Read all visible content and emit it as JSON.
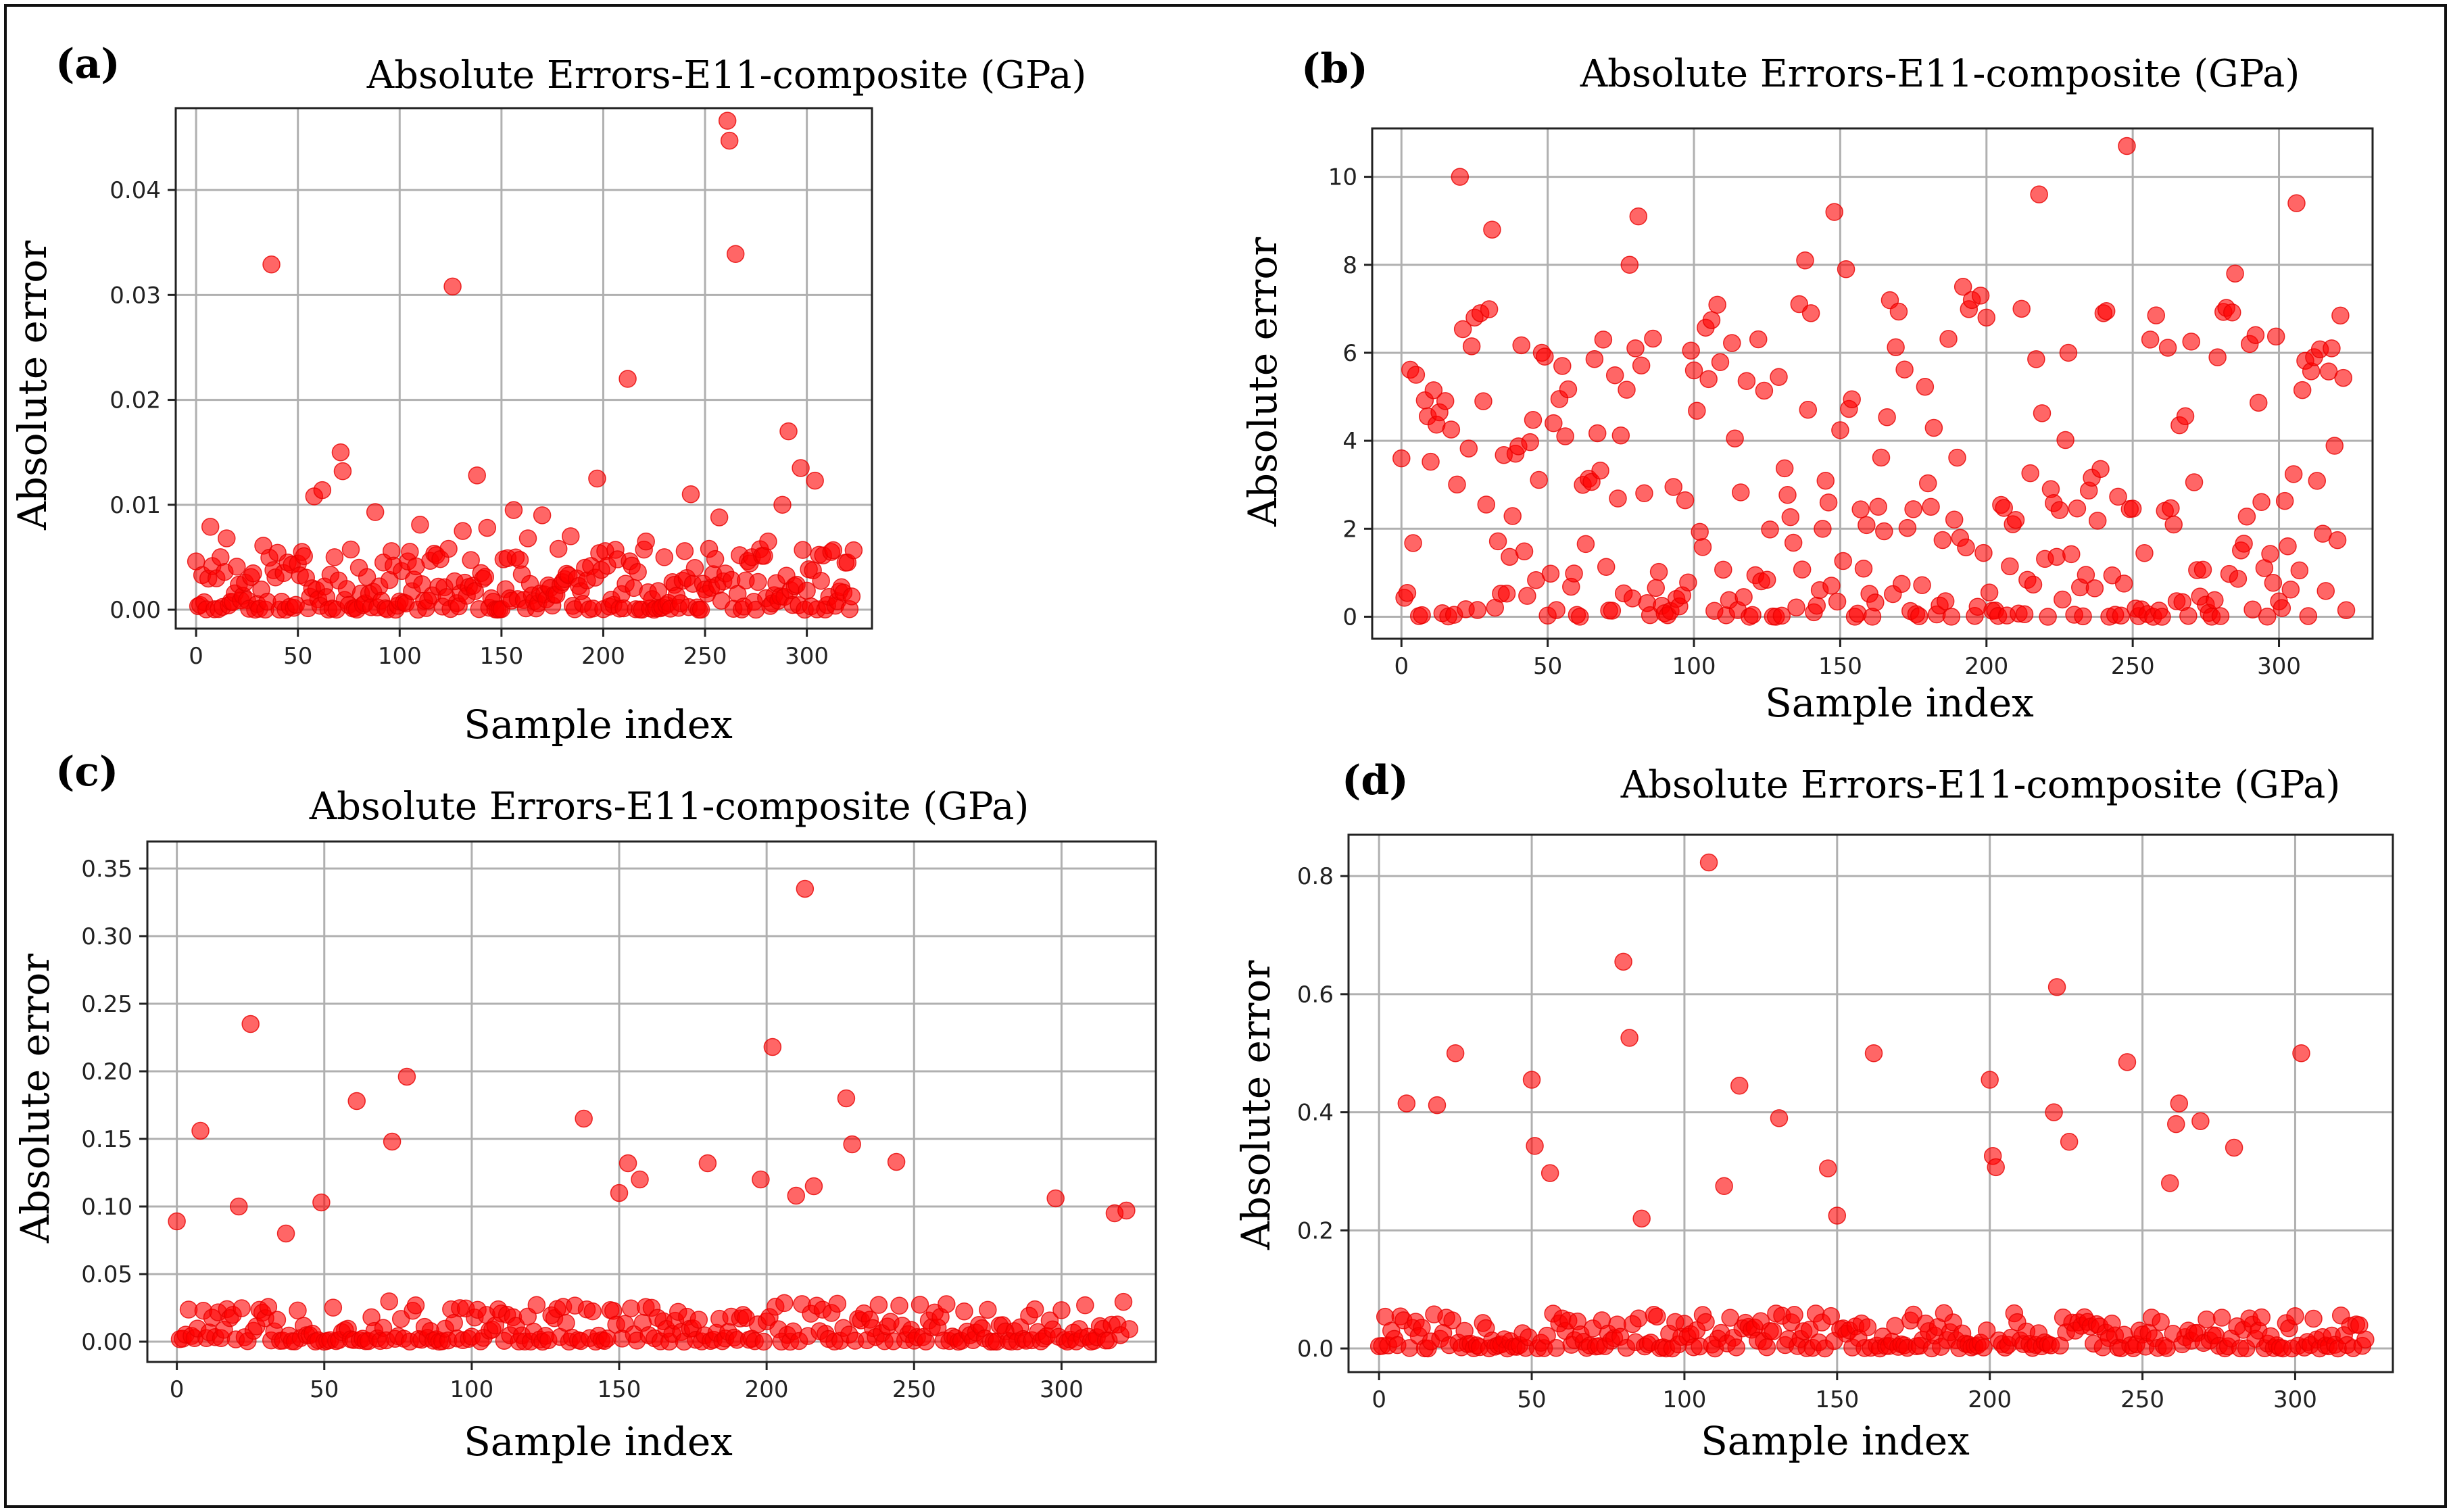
{
  "figure": {
    "colors": {
      "marker": "#ff0000",
      "grid": "#b0b0b0",
      "frame": "#222222"
    }
  },
  "chart_data": [
    {
      "panel": "(a)",
      "type": "scatter",
      "title": "Absolute Errors-E11-composite (GPa)",
      "xlabel": "Sample index",
      "ylabel": "Absolute error",
      "xlim": [
        -10,
        332
      ],
      "ylim": [
        -0.0018,
        0.0478
      ],
      "xticks": [
        0,
        50,
        100,
        150,
        200,
        250,
        300
      ],
      "xtick_labels": [
        "0",
        "50",
        "100",
        "150",
        "200",
        "250",
        "300"
      ],
      "yticks": [
        0,
        0.01,
        0.02,
        0.03,
        0.04
      ],
      "ytick_labels": [
        "0.00",
        "0.01",
        "0.02",
        "0.03",
        "0.04"
      ],
      "grid": true,
      "n_points": 324,
      "seed": 11,
      "baseline_max": 0.0058,
      "x": [
        0,
        3,
        7,
        12,
        15,
        20,
        33,
        37,
        45,
        52,
        58,
        62,
        68,
        71,
        72,
        80,
        88,
        92,
        97,
        104,
        110,
        118,
        124,
        126,
        131,
        138,
        143,
        151,
        156,
        163,
        170,
        178,
        184,
        191,
        197,
        207,
        212,
        214,
        221,
        230,
        243,
        252,
        257,
        261,
        262,
        265,
        273,
        281,
        288,
        291,
        297,
        304,
        312,
        320
      ],
      "y": [
        0.0046,
        0.0033,
        0.0079,
        0.005,
        0.0068,
        0.0041,
        0.0061,
        0.0329,
        0.0045,
        0.0055,
        0.0108,
        0.0114,
        0.005,
        0.015,
        0.0132,
        0.004,
        0.0093,
        0.0045,
        0.0042,
        0.0046,
        0.0081,
        0.0052,
        0.0058,
        0.0308,
        0.0075,
        0.0128,
        0.0078,
        0.0048,
        0.0095,
        0.0068,
        0.009,
        0.0058,
        0.007,
        0.004,
        0.0125,
        0.0048,
        0.022,
        0.0042,
        0.0065,
        0.005,
        0.011,
        0.0058,
        0.0088,
        0.0466,
        0.0447,
        0.0339,
        0.005,
        0.0065,
        0.01,
        0.017,
        0.0135,
        0.0123,
        0.0055,
        0.0045
      ]
    },
    {
      "panel": "(b)",
      "type": "scatter",
      "title": "Absolute Errors-E11-composite (GPa)",
      "xlabel": "Sample index",
      "ylabel": "Absolute error",
      "xlim": [
        -10,
        332
      ],
      "ylim": [
        -0.5,
        11.1
      ],
      "xticks": [
        0,
        50,
        100,
        150,
        200,
        250,
        300
      ],
      "xtick_labels": [
        "0",
        "50",
        "100",
        "150",
        "200",
        "250",
        "300"
      ],
      "yticks": [
        0,
        2,
        4,
        6,
        8,
        10
      ],
      "ytick_labels": [
        "0",
        "2",
        "4",
        "6",
        "8",
        "10"
      ],
      "grid": true,
      "n_points": 324,
      "seed": 22,
      "baseline_max": 7.2,
      "x": [
        0,
        5,
        20,
        25,
        27,
        31,
        48,
        52,
        55,
        69,
        78,
        80,
        81,
        100,
        138,
        140,
        148,
        152,
        192,
        195,
        198,
        200,
        212,
        218,
        228,
        240,
        248,
        256,
        285,
        290,
        306,
        312,
        318
      ],
      "y": [
        3.6,
        5.5,
        10.0,
        6.8,
        6.9,
        8.8,
        6.0,
        4.4,
        5.7,
        6.3,
        8.0,
        6.1,
        9.1,
        5.6,
        8.1,
        6.9,
        9.2,
        7.9,
        7.5,
        7.2,
        7.3,
        6.8,
        7.0,
        9.6,
        6.0,
        6.9,
        10.7,
        6.3,
        7.8,
        6.2,
        9.4,
        5.9,
        6.1
      ]
    },
    {
      "panel": "(c)",
      "type": "scatter",
      "title": "Absolute Errors-E11-composite (GPa)",
      "xlabel": "Sample index",
      "ylabel": "Absolute error",
      "xlim": [
        -10,
        332
      ],
      "ylim": [
        -0.015,
        0.37
      ],
      "xticks": [
        0,
        50,
        100,
        150,
        200,
        250,
        300
      ],
      "xtick_labels": [
        "0",
        "50",
        "100",
        "150",
        "200",
        "250",
        "300"
      ],
      "yticks": [
        0,
        0.05,
        0.1,
        0.15,
        0.2,
        0.25,
        0.3,
        0.35
      ],
      "ytick_labels": [
        "0.00",
        "0.05",
        "0.10",
        "0.15",
        "0.20",
        "0.25",
        "0.30",
        "0.35"
      ],
      "grid": true,
      "n_points": 324,
      "seed": 33,
      "baseline_max": 0.03,
      "x": [
        0,
        8,
        21,
        25,
        37,
        49,
        61,
        73,
        78,
        138,
        150,
        153,
        157,
        180,
        198,
        202,
        210,
        213,
        216,
        227,
        229,
        244,
        298,
        318,
        322
      ],
      "y": [
        0.089,
        0.156,
        0.1,
        0.235,
        0.08,
        0.103,
        0.178,
        0.148,
        0.196,
        0.165,
        0.11,
        0.132,
        0.12,
        0.132,
        0.12,
        0.218,
        0.108,
        0.335,
        0.115,
        0.18,
        0.146,
        0.133,
        0.106,
        0.095,
        0.097
      ]
    },
    {
      "panel": "(d)",
      "type": "scatter",
      "title": "Absolute Errors-E11-composite (GPa)",
      "xlabel": "Sample index",
      "ylabel": "Absolute error",
      "xlim": [
        -10,
        332
      ],
      "ylim": [
        -0.04,
        0.87
      ],
      "xticks": [
        0,
        50,
        100,
        150,
        200,
        250,
        300
      ],
      "xtick_labels": [
        "0",
        "50",
        "100",
        "150",
        "200",
        "250",
        "300"
      ],
      "yticks": [
        0,
        0.2,
        0.4,
        0.6,
        0.8
      ],
      "ytick_labels": [
        "0.0",
        "0.2",
        "0.4",
        "0.6",
        "0.8"
      ],
      "grid": true,
      "n_points": 324,
      "seed": 44,
      "baseline_max": 0.06,
      "x": [
        9,
        19,
        25,
        50,
        51,
        56,
        80,
        82,
        86,
        108,
        113,
        118,
        131,
        147,
        150,
        162,
        200,
        201,
        202,
        221,
        222,
        226,
        245,
        259,
        261,
        262,
        269,
        280,
        302
      ],
      "y": [
        0.415,
        0.412,
        0.5,
        0.455,
        0.343,
        0.297,
        0.655,
        0.526,
        0.22,
        0.823,
        0.275,
        0.445,
        0.39,
        0.305,
        0.225,
        0.5,
        0.455,
        0.326,
        0.307,
        0.4,
        0.612,
        0.35,
        0.485,
        0.28,
        0.38,
        0.415,
        0.385,
        0.34,
        0.5
      ]
    }
  ]
}
